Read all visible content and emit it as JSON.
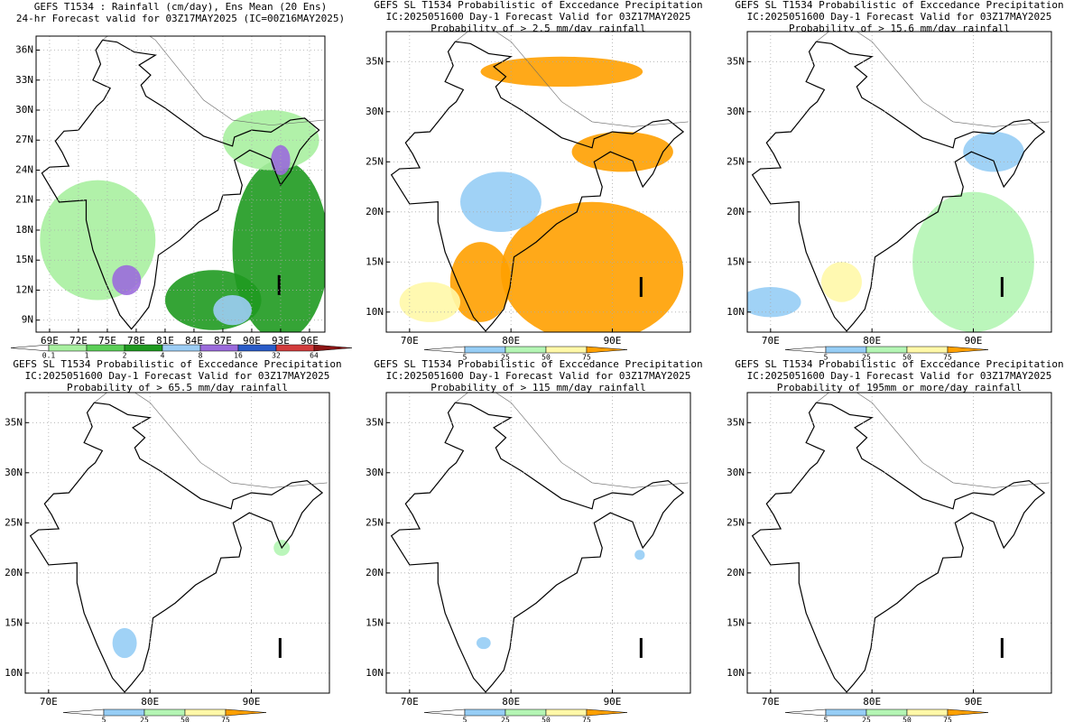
{
  "panels": [
    {
      "title": [
        "GEFS T1534 : Rainfall (cm/day), Ens Mean (20 Ens)",
        "24-hr Forecast valid for 03Z17MAY2025 (IC=00Z16MAY2025)"
      ],
      "xlim": [
        67.6,
        97.6
      ],
      "ylim": [
        7.8,
        37.4
      ],
      "lat_ticks": [
        {
          "value": 36,
          "label": "36N"
        },
        {
          "value": 33,
          "label": "33N"
        },
        {
          "value": 30,
          "label": "30N"
        },
        {
          "value": 27,
          "label": "27N"
        },
        {
          "value": 24,
          "label": "24N"
        },
        {
          "value": 21,
          "label": "21N"
        },
        {
          "value": 18,
          "label": "18N"
        },
        {
          "value": 15,
          "label": "15N"
        },
        {
          "value": 12,
          "label": "12N"
        },
        {
          "value": 9,
          "label": "9N"
        }
      ],
      "lon_ticks": [
        {
          "value": 69,
          "label": "69E"
        },
        {
          "value": 72,
          "label": "72E"
        },
        {
          "value": 75,
          "label": "75E"
        },
        {
          "value": 78,
          "label": "78E"
        },
        {
          "value": 81,
          "label": "81E"
        },
        {
          "value": 84,
          "label": "84E"
        },
        {
          "value": 87,
          "label": "87E"
        },
        {
          "value": 90,
          "label": "90E"
        },
        {
          "value": 93,
          "label": "93E"
        },
        {
          "value": 96,
          "label": "96E"
        }
      ],
      "colorbar": {
        "labels": [
          0.1,
          1,
          2,
          4,
          8,
          16,
          32,
          64
        ],
        "colors": [
          "#ffffff",
          "#a8f0a0",
          "#5ccf58",
          "#1f9a20",
          "#9ccdf5",
          "#9b6bdc",
          "#2a5cc8",
          "#d23c3c",
          "#8c1414"
        ]
      }
    },
    {
      "title": [
        "GEFS SL T1534 Probabilistic of Exccedance Precipitation",
        "IC:2025051600 Day-1 Forecast Valid for 03Z17MAY2025",
        "Probability of > 2.5 mm/day rainfall"
      ],
      "xlim": [
        67.7,
        97.7
      ],
      "ylim": [
        8,
        38
      ],
      "lat_ticks": [
        {
          "value": 35,
          "label": "35N"
        },
        {
          "value": 30,
          "label": "30N"
        },
        {
          "value": 25,
          "label": "25N"
        },
        {
          "value": 20,
          "label": "20N"
        },
        {
          "value": 15,
          "label": "15N"
        },
        {
          "value": 10,
          "label": "10N"
        }
      ],
      "lon_ticks": [
        {
          "value": 70,
          "label": "70E"
        },
        {
          "value": 80,
          "label": "80E"
        },
        {
          "value": 90,
          "label": "90E"
        }
      ],
      "colorbar": {
        "labels": [
          5,
          25,
          50,
          75
        ],
        "colors": [
          "#ffffff",
          "#96cdf5",
          "#b4f5b4",
          "#fff8a8",
          "#ffa000"
        ]
      }
    },
    {
      "title": [
        "GEFS SL T1534 Probabilistic of Exccedance Precipitation",
        "IC:2025051600 Day-1 Forecast Valid for 03Z17MAY2025",
        "Probability of > 15.6 mm/day rainfall"
      ],
      "xlim": [
        67.7,
        97.7
      ],
      "ylim": [
        8,
        38
      ],
      "lat_ticks": [
        {
          "value": 35,
          "label": "35N"
        },
        {
          "value": 30,
          "label": "30N"
        },
        {
          "value": 25,
          "label": "25N"
        },
        {
          "value": 20,
          "label": "20N"
        },
        {
          "value": 15,
          "label": "15N"
        },
        {
          "value": 10,
          "label": "10N"
        }
      ],
      "lon_ticks": [
        {
          "value": 70,
          "label": "70E"
        },
        {
          "value": 80,
          "label": "80E"
        },
        {
          "value": 90,
          "label": "90E"
        }
      ],
      "colorbar": {
        "labels": [
          5,
          25,
          50,
          75
        ],
        "colors": [
          "#ffffff",
          "#96cdf5",
          "#b4f5b4",
          "#fff8a8",
          "#ffa000"
        ]
      }
    },
    {
      "title": [
        "GEFS SL T1534 Probabilistic of Exccedance Precipitation",
        "IC:2025051600 Day-1 Forecast Valid for 03Z17MAY2025",
        "Probability of > 65.5 mm/day rainfall"
      ],
      "xlim": [
        67.7,
        97.7
      ],
      "ylim": [
        8,
        38
      ],
      "lat_ticks": [
        {
          "value": 35,
          "label": "35N"
        },
        {
          "value": 30,
          "label": "30N"
        },
        {
          "value": 25,
          "label": "25N"
        },
        {
          "value": 20,
          "label": "20N"
        },
        {
          "value": 15,
          "label": "15N"
        },
        {
          "value": 10,
          "label": "10N"
        }
      ],
      "lon_ticks": [
        {
          "value": 70,
          "label": "70E"
        },
        {
          "value": 80,
          "label": "80E"
        },
        {
          "value": 90,
          "label": "90E"
        }
      ],
      "colorbar": {
        "labels": [
          5,
          25,
          50,
          75
        ],
        "colors": [
          "#ffffff",
          "#96cdf5",
          "#b4f5b4",
          "#fff8a8",
          "#ffa000"
        ]
      }
    },
    {
      "title": [
        "GEFS SL T1534 Probabilistic of Exccedance Precipitation",
        "IC:2025051600 Day-1 Forecast Valid for 03Z17MAY2025",
        "Probability of > 115 mm/day rainfall"
      ],
      "xlim": [
        67.7,
        97.7
      ],
      "ylim": [
        8,
        38
      ],
      "lat_ticks": [
        {
          "value": 35,
          "label": "35N"
        },
        {
          "value": 30,
          "label": "30N"
        },
        {
          "value": 25,
          "label": "25N"
        },
        {
          "value": 20,
          "label": "20N"
        },
        {
          "value": 15,
          "label": "15N"
        },
        {
          "value": 10,
          "label": "10N"
        }
      ],
      "lon_ticks": [
        {
          "value": 70,
          "label": "70E"
        },
        {
          "value": 80,
          "label": "80E"
        },
        {
          "value": 90,
          "label": "90E"
        }
      ],
      "colorbar": {
        "labels": [
          5,
          25,
          50,
          75
        ],
        "colors": [
          "#ffffff",
          "#96cdf5",
          "#b4f5b4",
          "#fff8a8",
          "#ffa000"
        ]
      }
    },
    {
      "title": [
        "GEFS SL T1534 Probabilistic of Exccedance Precipitation",
        "IC:2025051600 Day-1 Forecast Valid for 03Z17MAY2025",
        "Probability of 195mm or more/day rainfall"
      ],
      "xlim": [
        67.7,
        97.7
      ],
      "ylim": [
        8,
        38
      ],
      "lat_ticks": [
        {
          "value": 35,
          "label": "35N"
        },
        {
          "value": 30,
          "label": "30N"
        },
        {
          "value": 25,
          "label": "25N"
        },
        {
          "value": 20,
          "label": "20N"
        },
        {
          "value": 15,
          "label": "15N"
        },
        {
          "value": 10,
          "label": "10N"
        }
      ],
      "lon_ticks": [
        {
          "value": 70,
          "label": "70E"
        },
        {
          "value": 80,
          "label": "80E"
        },
        {
          "value": 90,
          "label": "90E"
        }
      ],
      "colorbar": {
        "labels": [
          5,
          25,
          50,
          75
        ],
        "colors": [
          "#ffffff",
          "#96cdf5",
          "#b4f5b4",
          "#fff8a8",
          "#ffa000"
        ]
      }
    }
  ]
}
